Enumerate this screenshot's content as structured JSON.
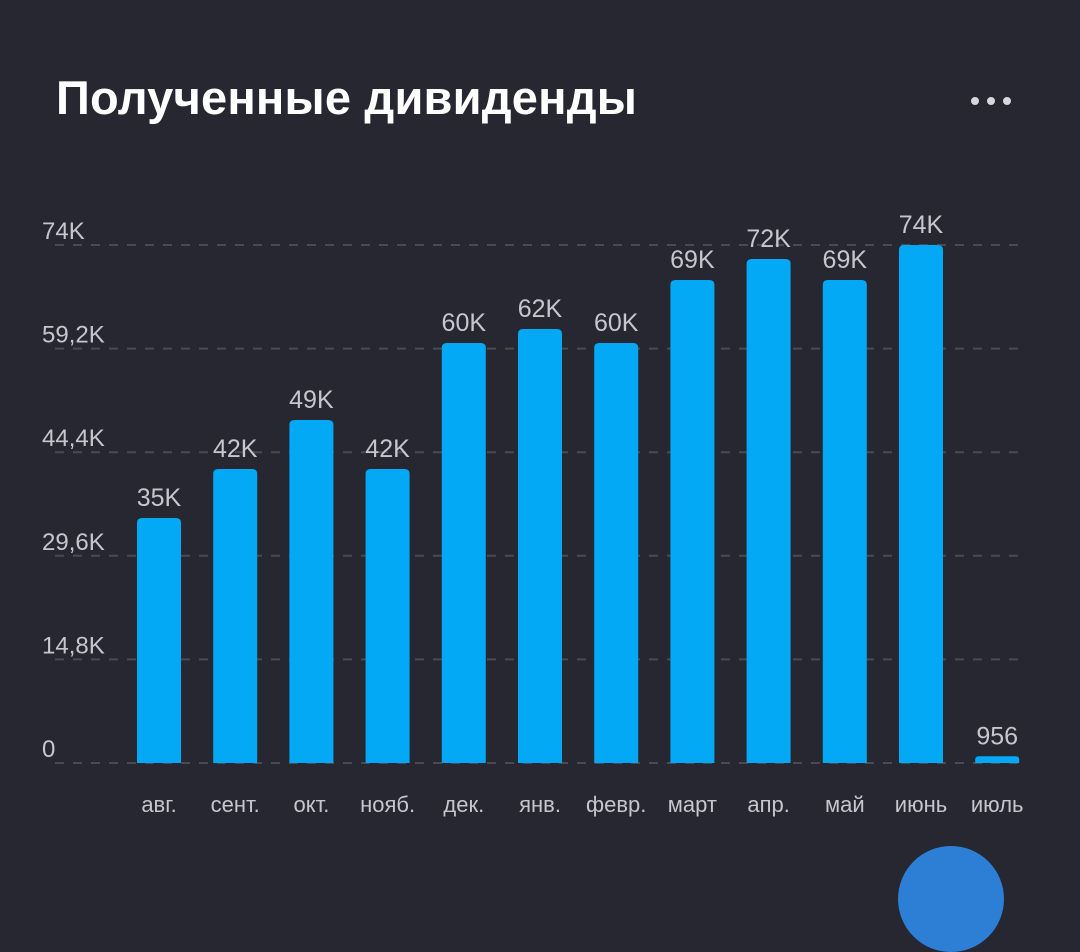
{
  "card": {
    "title": "Полученные дивиденды",
    "more_icon": "more-horizontal-icon"
  },
  "colors": {
    "background": "#272731",
    "bar": "#03A9F4",
    "text": "#c6c6cc",
    "grid": "#4a4a55",
    "fab": "#2d7fd6"
  },
  "chart_data": {
    "type": "bar",
    "title": "Полученные дивиденды",
    "xlabel": "",
    "ylabel": "",
    "categories": [
      "авг.",
      "сент.",
      "окт.",
      "нояб.",
      "дек.",
      "янв.",
      "февр.",
      "март",
      "апр.",
      "май",
      "июнь",
      "июль"
    ],
    "values": [
      35000,
      42000,
      49000,
      42000,
      60000,
      62000,
      60000,
      69000,
      72000,
      69000,
      74000,
      956
    ],
    "data_labels": [
      "35K",
      "42K",
      "49K",
      "42K",
      "60K",
      "62K",
      "60K",
      "69K",
      "72K",
      "69K",
      "74K",
      "956"
    ],
    "yticks": [
      0,
      14800,
      29600,
      44400,
      59200,
      74000
    ],
    "ytick_labels": [
      "0",
      "14,8K",
      "29,6K",
      "44,4K",
      "59,2K",
      "74K"
    ],
    "ylim": [
      0,
      74000
    ],
    "grid": true,
    "grid_style": "dashed",
    "legend": "none"
  }
}
